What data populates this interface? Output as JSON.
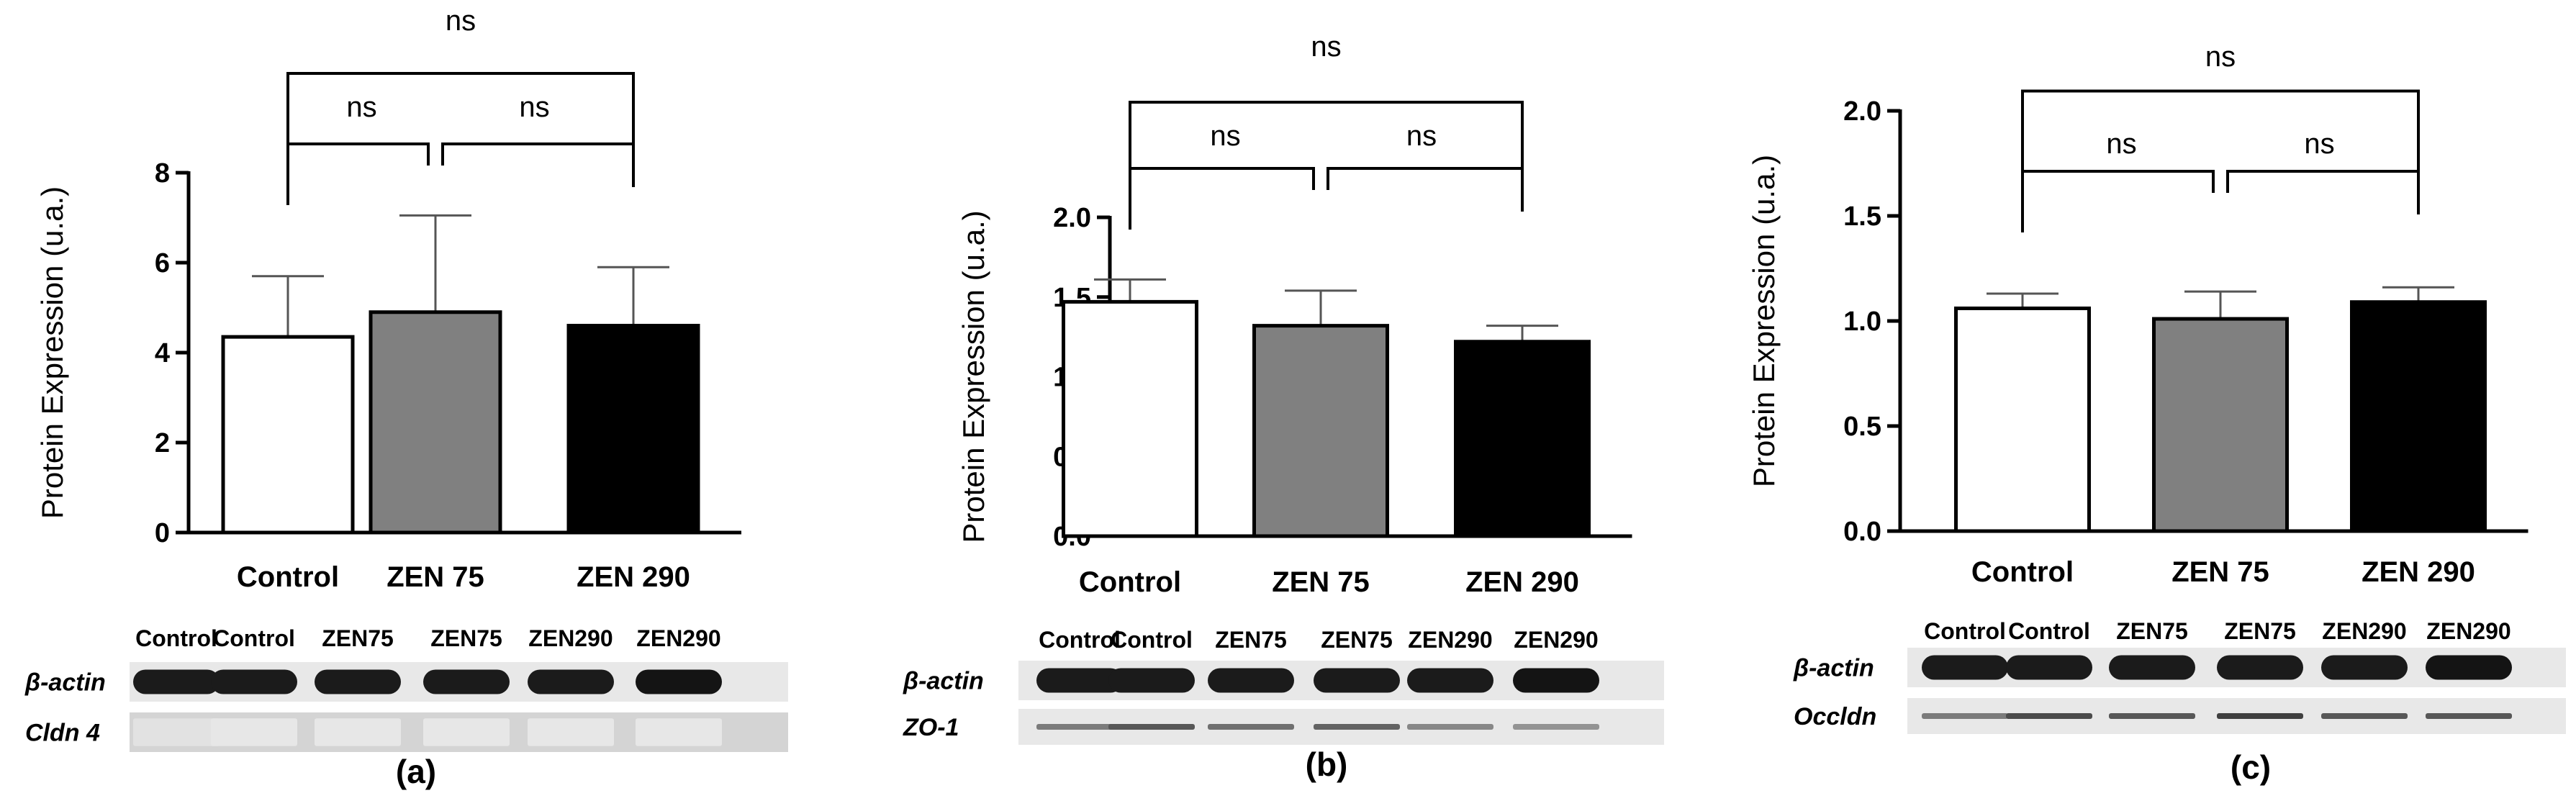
{
  "figure": {
    "background": "#ffffff",
    "bar_colors": [
      "#ffffff",
      "#808080",
      "#000000"
    ],
    "error_bar_color": "#555555"
  },
  "chart_data": [
    {
      "type": "bar",
      "panel_label": "(a)",
      "categories": [
        "Control",
        "ZEN 75",
        "ZEN 290"
      ],
      "values": [
        4.35,
        4.9,
        4.6
      ],
      "errors": [
        1.35,
        2.15,
        1.3
      ],
      "ylabel": "Protein Expression (u.a.)",
      "ylim": [
        0,
        8
      ],
      "yticks": [
        0,
        2,
        4,
        6,
        8
      ],
      "ytick_labels": [
        "0",
        "2",
        "4",
        "6",
        "8"
      ],
      "grid": false,
      "significance": [
        {
          "from": 0,
          "to": 1,
          "label": "ns"
        },
        {
          "from": 1,
          "to": 2,
          "label": "ns"
        },
        {
          "from": 0,
          "to": 2,
          "label": "ns"
        }
      ],
      "blot": {
        "lanes": [
          "Control",
          "Control",
          "ZEN75",
          "ZEN75",
          "ZEN290",
          "ZEN290"
        ],
        "rows": [
          {
            "label": "β-actin",
            "style": "dark",
            "intensity": [
              0.95,
              0.95,
              0.95,
              0.95,
              0.95,
              0.98
            ]
          },
          {
            "label": "Cldn 4",
            "style": "faint",
            "intensity": [
              0.12,
              0.1,
              0.1,
              0.1,
              0.1,
              0.1
            ]
          }
        ]
      }
    },
    {
      "type": "bar",
      "panel_label": "(b)",
      "categories": [
        "Control",
        "ZEN 75",
        "ZEN 290"
      ],
      "values": [
        1.47,
        1.32,
        1.22
      ],
      "errors": [
        0.14,
        0.22,
        0.1
      ],
      "ylabel": "Protein Expression (u.a.)",
      "ylim": [
        0,
        2.0
      ],
      "yticks": [
        0,
        0.5,
        1.0,
        1.5,
        2.0
      ],
      "ytick_labels": [
        "0.0",
        "0.5",
        "1.0",
        "1.5",
        "2.0"
      ],
      "grid": false,
      "significance": [
        {
          "from": 0,
          "to": 1,
          "label": "ns"
        },
        {
          "from": 1,
          "to": 2,
          "label": "ns"
        },
        {
          "from": 0,
          "to": 2,
          "label": "ns"
        }
      ],
      "blot": {
        "lanes": [
          "Control",
          "Control",
          "ZEN75",
          "ZEN75",
          "ZEN290",
          "ZEN290"
        ],
        "rows": [
          {
            "label": "β-actin",
            "style": "dark",
            "intensity": [
              0.95,
              0.95,
              0.95,
              0.95,
              0.95,
              0.98
            ]
          },
          {
            "label": "ZO-1",
            "style": "thin",
            "intensity": [
              0.55,
              0.7,
              0.6,
              0.65,
              0.5,
              0.45
            ]
          }
        ]
      }
    },
    {
      "type": "bar",
      "panel_label": "(c)",
      "categories": [
        "Control",
        "ZEN 75",
        "ZEN 290"
      ],
      "values": [
        1.06,
        1.01,
        1.09
      ],
      "errors": [
        0.07,
        0.13,
        0.07
      ],
      "ylabel": "Protein Expression (u.a.)",
      "ylim": [
        0,
        2.0
      ],
      "yticks": [
        0,
        0.5,
        1.0,
        1.5,
        2.0
      ],
      "ytick_labels": [
        "0.0",
        "0.5",
        "1.0",
        "1.5",
        "2.0"
      ],
      "grid": false,
      "significance": [
        {
          "from": 0,
          "to": 1,
          "label": "ns"
        },
        {
          "from": 1,
          "to": 2,
          "label": "ns"
        },
        {
          "from": 0,
          "to": 2,
          "label": "ns"
        }
      ],
      "blot": {
        "lanes": [
          "Control",
          "Control",
          "ZEN75",
          "ZEN75",
          "ZEN290",
          "ZEN290"
        ],
        "rows": [
          {
            "label": "β-actin",
            "style": "dark",
            "intensity": [
              0.95,
              0.95,
              0.95,
              0.95,
              0.95,
              0.98
            ]
          },
          {
            "label": "Occldn",
            "style": "thin",
            "intensity": [
              0.55,
              0.75,
              0.7,
              0.8,
              0.7,
              0.7
            ]
          }
        ]
      }
    }
  ]
}
